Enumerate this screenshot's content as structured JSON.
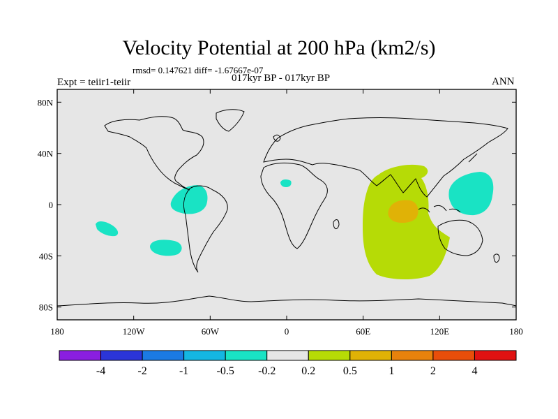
{
  "title": "Velocity Potential at 200 hPa (km2/s)",
  "stats_line": "rmsd= 0.147621 diff= -1.67667e-07",
  "experiment_label": "Expt = teiir1-teiir",
  "period_label": "017kyr BP - 017kyr BP",
  "season_label": "ANN",
  "map": {
    "lon_range": [
      -180,
      180
    ],
    "lat_range": [
      -90,
      90
    ],
    "background_color": "#e6e6e6"
  },
  "lat_ticks": [
    {
      "value": 80,
      "label": "80N"
    },
    {
      "value": 40,
      "label": "40N"
    },
    {
      "value": 0,
      "label": "0"
    },
    {
      "value": -40,
      "label": "40S"
    },
    {
      "value": -80,
      "label": "80S"
    }
  ],
  "lon_ticks": [
    {
      "value": -180,
      "label": "180"
    },
    {
      "value": -120,
      "label": "120W"
    },
    {
      "value": -60,
      "label": "60W"
    },
    {
      "value": 0,
      "label": "0"
    },
    {
      "value": 60,
      "label": "60E"
    },
    {
      "value": 120,
      "label": "120E"
    },
    {
      "value": 180,
      "label": "180"
    }
  ],
  "colorbar": {
    "colors": [
      "#8a1ee0",
      "#2b35d8",
      "#1b7ae3",
      "#14b6e2",
      "#19e3c4",
      "#e6e6e6",
      "#b6db06",
      "#e0b206",
      "#e8820c",
      "#e84e0a",
      "#e01212"
    ],
    "labels": [
      "-4",
      "-2",
      "-1",
      "-0.5",
      "-0.2",
      "0.2",
      "0.5",
      "1",
      "2",
      "4"
    ]
  },
  "regions": [
    {
      "name": "indian-ocean-positive",
      "level": "0.2 to 0.5",
      "color": "#b6db06"
    },
    {
      "name": "indian-ocean-core",
      "level": "0.5 to 1",
      "color": "#e0b206"
    },
    {
      "name": "west-pacific-negative",
      "level": "-0.5 to -0.2",
      "color": "#19e3c4"
    },
    {
      "name": "central-america-negative",
      "level": "-0.5 to -0.2",
      "color": "#19e3c4"
    },
    {
      "name": "east-pacific-negative-1",
      "level": "-0.5 to -0.2",
      "color": "#19e3c4"
    },
    {
      "name": "east-pacific-negative-2",
      "level": "-0.5 to -0.2",
      "color": "#19e3c4"
    },
    {
      "name": "west-africa-negative",
      "level": "-0.5 to -0.2",
      "color": "#19e3c4"
    }
  ]
}
